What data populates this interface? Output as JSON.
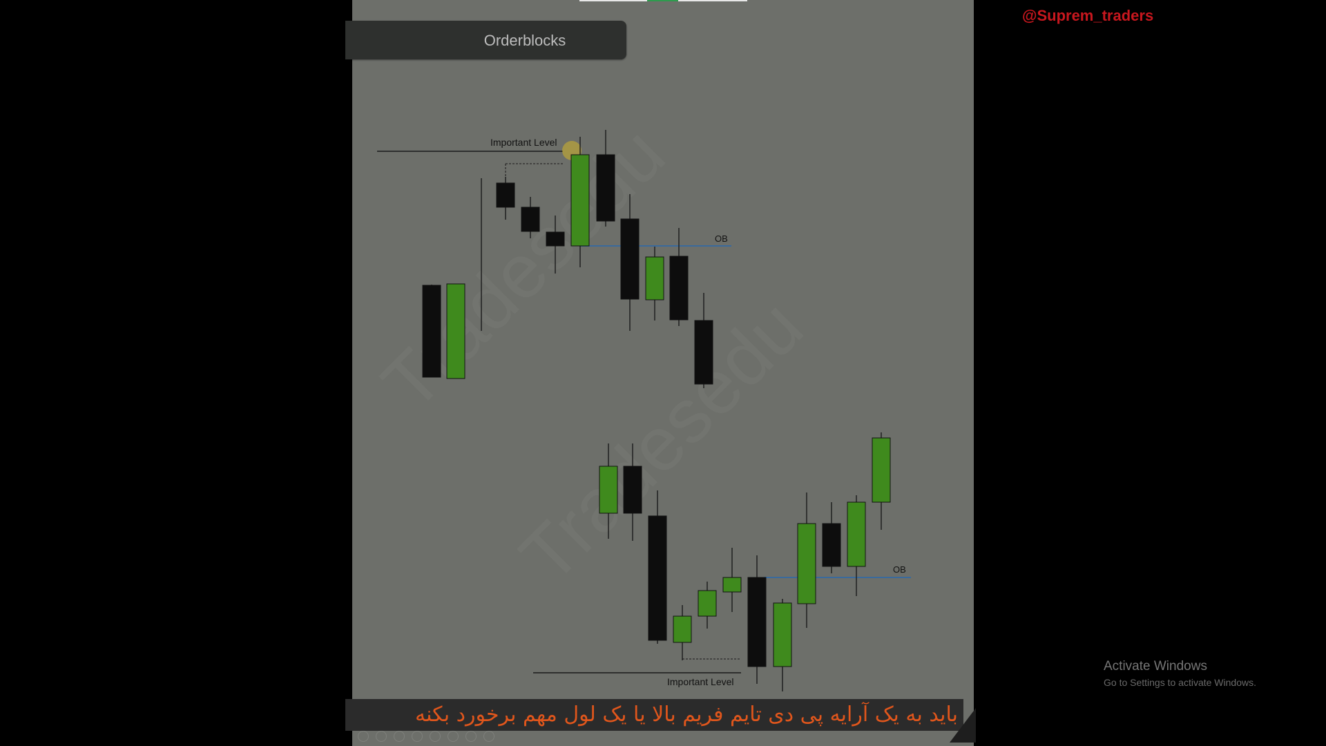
{
  "slide": {
    "title": "Orderblocks",
    "watermark_text": "Tradesedu",
    "top_level_label": "Important Level",
    "bottom_level_label": "Important Level",
    "ob_label_top": "OB",
    "ob_label_bottom": "OB"
  },
  "chart_data": {
    "type": "candlestick",
    "bull_color": "#3f8a1d",
    "bear_color": "#0d0d0d",
    "ob_line_color": "#3a6a9c",
    "upper_pattern": [
      {
        "dir": "bear"
      },
      {
        "dir": "bull"
      },
      {
        "dir": "bull"
      },
      {
        "dir": "bear"
      },
      {
        "dir": "bear"
      },
      {
        "dir": "bear"
      },
      {
        "dir": "bull"
      },
      {
        "dir": "bear"
      },
      {
        "dir": "bear"
      },
      {
        "dir": "bull"
      },
      {
        "dir": "bear"
      },
      {
        "dir": "bear"
      }
    ],
    "lower_pattern": [
      {
        "dir": "bull"
      },
      {
        "dir": "bear"
      },
      {
        "dir": "bear"
      },
      {
        "dir": "bull"
      },
      {
        "dir": "bull"
      },
      {
        "dir": "bull"
      },
      {
        "dir": "bear"
      },
      {
        "dir": "bull"
      },
      {
        "dir": "bull"
      },
      {
        "dir": "bear"
      },
      {
        "dir": "bull"
      },
      {
        "dir": "bull"
      }
    ]
  },
  "subtitle": "باید به یک آرایه پی دی تایم فریم بالا یا یک لول مهم برخورد بکنه",
  "channel_handle": "@Suprem_traders",
  "activate_windows": {
    "title": "Activate Windows",
    "subtitle": "Go to Settings to activate Windows."
  },
  "colors": {
    "slide_bg": "#6d6f6a",
    "title_bg": "#2e302e",
    "subtitle_text": "#e0561c",
    "handle_text": "#c8171e"
  }
}
